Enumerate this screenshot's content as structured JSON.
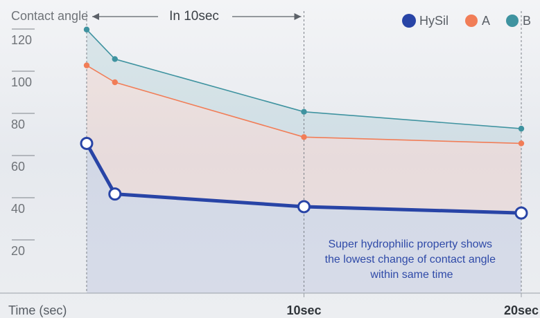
{
  "chart_data": {
    "type": "line",
    "ylabel": "Contact angle",
    "xlabel": "Time (sec)",
    "x_ticks": [
      {
        "x": 10,
        "label": "10sec"
      },
      {
        "x": 20,
        "label": "20sec"
      }
    ],
    "y_ticks": [
      20,
      40,
      60,
      80,
      100,
      120
    ],
    "xlim": [
      0,
      20
    ],
    "ylim": [
      0,
      135
    ],
    "grid": false,
    "legend_position": "top-right",
    "span_label": "In 10sec",
    "annotation": "Super hydrophilic property shows the lowest change of contact angle within same time",
    "annotation_lines": [
      "Super hydrophilic property shows",
      "the lowest change of contact angle",
      "within same time"
    ],
    "series": [
      {
        "name": "B",
        "color": "#3f93a0",
        "x": [
          0,
          1.3,
          10,
          20
        ],
        "y": [
          125,
          111,
          86,
          78
        ]
      },
      {
        "name": "A",
        "color": "#f17d57",
        "x": [
          0,
          1.3,
          10,
          20
        ],
        "y": [
          108,
          100,
          74,
          71
        ]
      },
      {
        "name": "HySil",
        "color": "#2844a6",
        "x": [
          0,
          1.3,
          10,
          20
        ],
        "y": [
          71,
          47,
          41,
          38
        ]
      }
    ]
  }
}
